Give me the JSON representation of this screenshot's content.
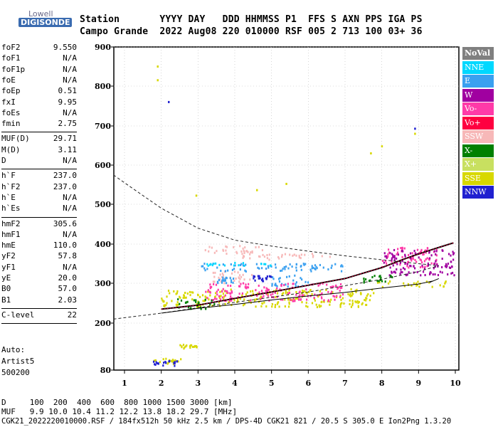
{
  "logo": {
    "line1": "Lowell",
    "line2": "DIGISONDE"
  },
  "header": {
    "row1": "Station       YYYY DAY   DDD HHMMSS P1  FFS S AXN PPS IGA PS",
    "row2": "Campo Grande  2022 Aug08 220 010000 RSF 005 2 713 100 03+ 36"
  },
  "params": [
    {
      "name": "foF2",
      "value": "9.550"
    },
    {
      "name": "foF1",
      "value": "N/A"
    },
    {
      "name": "foF1p",
      "value": "N/A"
    },
    {
      "name": "foE",
      "value": "N/A"
    },
    {
      "name": "foEp",
      "value": "0.51"
    },
    {
      "name": "fxI",
      "value": "9.95"
    },
    {
      "name": "foEs",
      "value": "N/A"
    },
    {
      "name": "fmin",
      "value": "2.75"
    },
    {
      "sep": true
    },
    {
      "name": "MUF(D)",
      "value": "29.71"
    },
    {
      "name": "M(D)",
      "value": "3.11"
    },
    {
      "name": "D",
      "value": "N/A"
    },
    {
      "sep": true
    },
    {
      "name": "h`F",
      "value": "237.0"
    },
    {
      "name": "h`F2",
      "value": "237.0"
    },
    {
      "name": "h`E",
      "value": "N/A"
    },
    {
      "name": "h`Es",
      "value": "N/A"
    },
    {
      "sep": true
    },
    {
      "name": "hmF2",
      "value": "305.6"
    },
    {
      "name": "hmF1",
      "value": "N/A"
    },
    {
      "name": "hmE",
      "value": "110.0"
    },
    {
      "name": "yF2",
      "value": "57.8"
    },
    {
      "name": "yF1",
      "value": "N/A"
    },
    {
      "name": "yE",
      "value": "20.0"
    },
    {
      "name": "B0",
      "value": "57.0"
    },
    {
      "name": "B1",
      "value": "2.03"
    },
    {
      "sep": true
    },
    {
      "name": "C-level",
      "value": "22"
    },
    {
      "sep": true
    }
  ],
  "auto": {
    "line1": "Auto:",
    "line2": "Artist5",
    "line3": "500200"
  },
  "legend": [
    {
      "label": "NoVal",
      "color": "#808080"
    },
    {
      "label": "NNE",
      "color": "#00d8ff"
    },
    {
      "label": "E",
      "color": "#3aa0f0"
    },
    {
      "label": "W",
      "color": "#a000a0"
    },
    {
      "label": "Vo-",
      "color": "#ff3aa8"
    },
    {
      "label": "Vo+",
      "color": "#ff0040"
    },
    {
      "label": "SSW",
      "color": "#f7b8b8"
    },
    {
      "label": "X-",
      "color": "#008000"
    },
    {
      "label": "X+",
      "color": "#c8e060"
    },
    {
      "label": "SSE",
      "color": "#d8d800"
    },
    {
      "label": "NNW",
      "color": "#2020d0"
    }
  ],
  "footer": {
    "line1": "D     100  200  400  600  800 1000 1500 3000 [km]",
    "line2": "MUF   9.9 10.0 10.4 11.2 12.2 13.8 18.2 29.7 [MHz]",
    "line3": "CGK21_2022220010000.RSF / 184fx512h 50 kHz 2.5 km / DPS-4D CGK21 821 / 20.5 S 305.0 E Ion2Png 1.3.20"
  },
  "chart_data": {
    "type": "scatter",
    "x_range": [
      0.7,
      10.0
    ],
    "y_range": [
      80,
      900
    ],
    "x_ticks": [
      1,
      2,
      3,
      4,
      5,
      6,
      7,
      8,
      9,
      10
    ],
    "y_ticks": [
      80,
      200,
      300,
      400,
      500,
      600,
      700,
      800,
      900
    ],
    "grid": true,
    "series": [
      {
        "name": "SSW",
        "color": "#f7b8b8",
        "clusters": [
          [
            3.0,
            375,
            4.8,
            395
          ],
          [
            4.2,
            360,
            6.6,
            375
          ],
          [
            3.3,
            300,
            4.5,
            330
          ]
        ]
      },
      {
        "name": "E",
        "color": "#3aa0f0",
        "clusters": [
          [
            3.0,
            330,
            7.0,
            350
          ],
          [
            5.0,
            290,
            6.0,
            320
          ],
          [
            3.5,
            300,
            4.0,
            315
          ]
        ]
      },
      {
        "name": "SSE",
        "color": "#d8d800",
        "clusters": [
          [
            2.0,
            240,
            7.8,
            285
          ],
          [
            7.8,
            290,
            9.8,
            305
          ],
          [
            1.8,
            95,
            2.6,
            110
          ],
          [
            2.5,
            135,
            3.0,
            145
          ]
        ]
      },
      {
        "name": "Vo-",
        "color": "#ff3aa8",
        "clusters": [
          [
            3.2,
            255,
            7.0,
            300
          ],
          [
            8.0,
            340,
            9.5,
            395
          ]
        ]
      },
      {
        "name": "W",
        "color": "#a000a0",
        "clusters": [
          [
            8.0,
            320,
            10.0,
            385
          ]
        ]
      },
      {
        "name": "X-",
        "color": "#008000",
        "clusters": [
          [
            2.4,
            235,
            3.5,
            260
          ],
          [
            7.5,
            300,
            8.3,
            320
          ]
        ]
      },
      {
        "name": "NNW",
        "color": "#2020d0",
        "clusters": [
          [
            1.7,
            90,
            2.5,
            105
          ],
          [
            4.5,
            305,
            5.0,
            320
          ]
        ]
      },
      {
        "name": "NNE",
        "color": "#00d8ff",
        "clusters": [
          [
            3.2,
            343,
            5.0,
            352
          ]
        ]
      }
    ],
    "isolated_points": [
      {
        "x": 1.9,
        "y": 850,
        "color": "#d8d800"
      },
      {
        "x": 1.9,
        "y": 815,
        "color": "#d8d800"
      },
      {
        "x": 2.2,
        "y": 760,
        "color": "#2020d0"
      },
      {
        "x": 2.95,
        "y": 522,
        "color": "#d8d800"
      },
      {
        "x": 4.6,
        "y": 536,
        "color": "#d8d800"
      },
      {
        "x": 5.4,
        "y": 552,
        "color": "#d8d800"
      },
      {
        "x": 7.7,
        "y": 630,
        "color": "#d8d800"
      },
      {
        "x": 8.0,
        "y": 648,
        "color": "#d8d800"
      },
      {
        "x": 8.9,
        "y": 693,
        "color": "#2020d0"
      },
      {
        "x": 8.9,
        "y": 680,
        "color": "#d8d800"
      }
    ],
    "profile_curve": [
      [
        2.0,
        235
      ],
      [
        3.0,
        245
      ],
      [
        4.0,
        262
      ],
      [
        5.0,
        278
      ],
      [
        6.0,
        295
      ],
      [
        7.0,
        312
      ],
      [
        8.0,
        340
      ],
      [
        8.5,
        358
      ],
      [
        9.0,
        375
      ],
      [
        9.5,
        390
      ],
      [
        9.95,
        403
      ]
    ],
    "lower_curve": [
      [
        2.0,
        225
      ],
      [
        3.0,
        237
      ],
      [
        4.0,
        247
      ],
      [
        5.0,
        258
      ],
      [
        6.0,
        268
      ],
      [
        7.0,
        277
      ],
      [
        8.0,
        288
      ],
      [
        9.0,
        298
      ],
      [
        9.4,
        306
      ],
      [
        9.55,
        312
      ],
      [
        9.3,
        302
      ]
    ],
    "dashed_curve": [
      [
        0.7,
        575
      ],
      [
        1.0,
        555
      ],
      [
        2.0,
        490
      ],
      [
        3.0,
        440
      ],
      [
        4.0,
        410
      ],
      [
        5.0,
        395
      ],
      [
        6.0,
        382
      ],
      [
        7.0,
        370
      ],
      [
        8.0,
        360
      ],
      [
        9.0,
        350
      ],
      [
        9.55,
        345
      ]
    ],
    "dashed_curve_lower": [
      [
        0.7,
        210
      ],
      [
        2.0,
        225
      ],
      [
        4.0,
        252
      ],
      [
        6.0,
        278
      ],
      [
        8.0,
        310
      ],
      [
        9.0,
        330
      ],
      [
        9.55,
        345
      ]
    ]
  }
}
